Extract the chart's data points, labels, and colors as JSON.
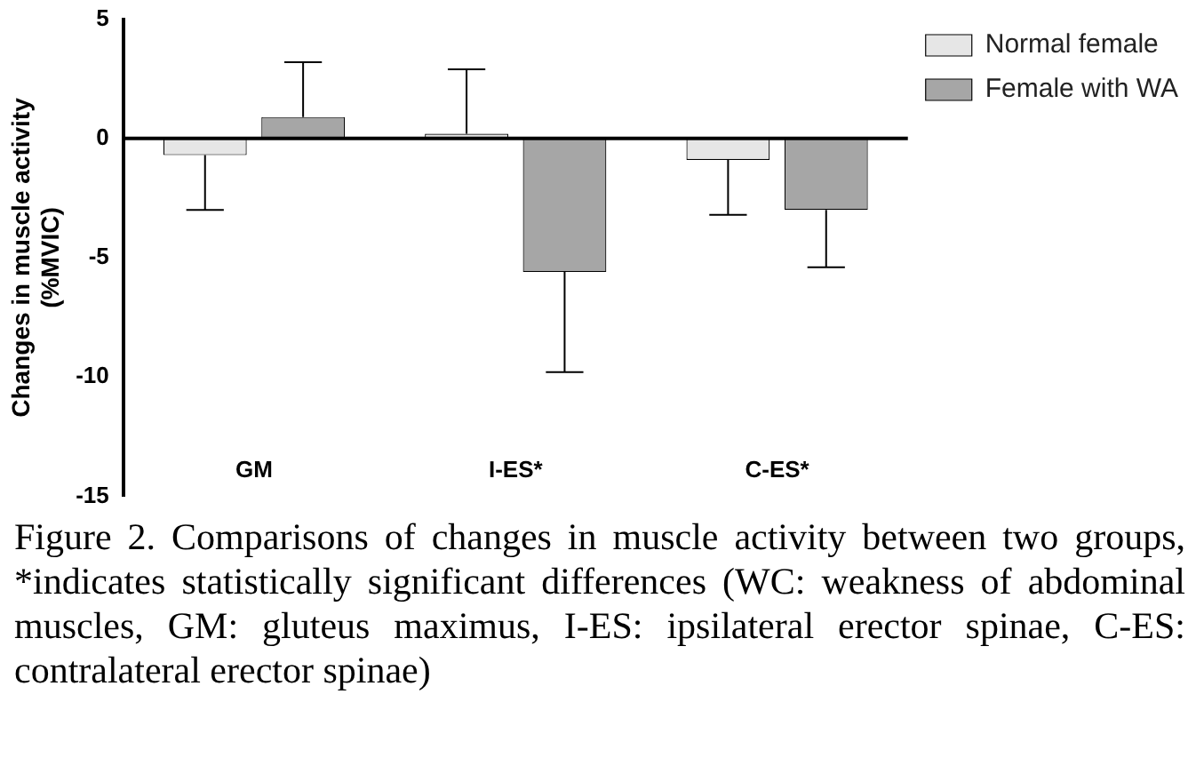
{
  "chart_data": {
    "type": "bar",
    "ylabel": "Changes in muscle activity\n(%MVIC)",
    "categories": [
      "GM",
      "I-ES*",
      "C-ES*"
    ],
    "series": [
      {
        "name": "Normal female",
        "color": "#e6e6e6",
        "values": [
          -0.7,
          0.2,
          -0.9
        ],
        "errors": [
          [
            -3.0,
            -0.7
          ],
          [
            0.2,
            2.9
          ],
          [
            -3.2,
            -0.9
          ]
        ]
      },
      {
        "name": "Female with WA",
        "color": "#a6a6a6",
        "values": [
          0.9,
          -5.6,
          -3.0
        ],
        "errors": [
          [
            0.9,
            3.2
          ],
          [
            -9.8,
            -5.6
          ],
          [
            -5.4,
            -3.0
          ]
        ]
      }
    ],
    "ref_lines": [
      {
        "axis": "y",
        "value": 0,
        "color": "#000000"
      }
    ],
    "ylim": [
      -15,
      5
    ],
    "yticks": [
      -15,
      -10,
      -5,
      0,
      5
    ],
    "grid": false,
    "legend": "top right",
    "annotations": [
      "Figure 2. Comparisons of changes in muscle activity between two groups, *indicates statistically significant differences (WC: weakness of abdominal muscles, GM: gluteus maximus, I-ES: ipsilateral erector spinae, C-ES: contralateral erector spinae)"
    ]
  }
}
